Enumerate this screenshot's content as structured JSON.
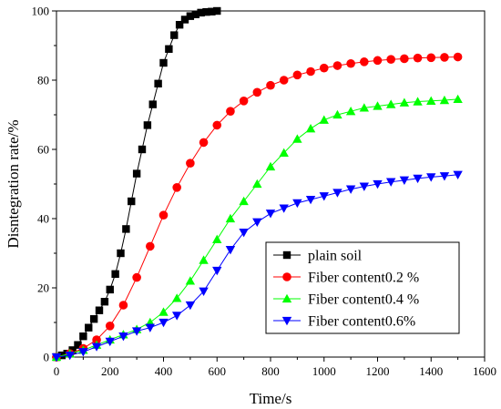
{
  "chart_data": {
    "type": "line",
    "xlabel": "Time/s",
    "ylabel": "Disntegration rate/%",
    "xlim": [
      0,
      1600
    ],
    "ylim": [
      0,
      100
    ],
    "xticks": [
      0,
      200,
      400,
      600,
      800,
      1000,
      1200,
      1400,
      1600
    ],
    "yticks": [
      0,
      20,
      40,
      60,
      80,
      100
    ],
    "grid": false,
    "legend_position": "bottom-right",
    "series": [
      {
        "name": "plain soil",
        "color": "#000000",
        "marker": "square",
        "x": [
          0,
          20,
          40,
          60,
          80,
          100,
          120,
          140,
          160,
          180,
          200,
          220,
          240,
          260,
          280,
          300,
          320,
          340,
          360,
          380,
          400,
          420,
          440,
          460,
          480,
          500,
          520,
          540,
          560,
          580,
          600
        ],
        "y": [
          0,
          0.5,
          1,
          2,
          3.5,
          6,
          8.5,
          11,
          13.5,
          16,
          19.5,
          24,
          30,
          37,
          45,
          53,
          60,
          67,
          73,
          79,
          85,
          89,
          93,
          96,
          97.5,
          98.5,
          99,
          99.5,
          99.7,
          99.8,
          100
        ]
      },
      {
        "name": "Fiber content0.2 %",
        "color": "#ff0000",
        "marker": "circle",
        "x": [
          0,
          50,
          100,
          150,
          200,
          250,
          300,
          350,
          400,
          450,
          500,
          550,
          600,
          650,
          700,
          750,
          800,
          850,
          900,
          950,
          1000,
          1050,
          1100,
          1150,
          1200,
          1250,
          1300,
          1350,
          1400,
          1450,
          1500
        ],
        "y": [
          0,
          1,
          2.5,
          5,
          9,
          15,
          23,
          32,
          41,
          49,
          56,
          62,
          67,
          71,
          74,
          76.5,
          78.5,
          80,
          81.5,
          82.5,
          83.5,
          84.2,
          84.8,
          85.3,
          85.7,
          86,
          86.2,
          86.4,
          86.5,
          86.6,
          86.7
        ]
      },
      {
        "name": "Fiber content0.4 %",
        "color": "#00ff00",
        "marker": "triangle-up",
        "x": [
          0,
          50,
          100,
          150,
          200,
          250,
          300,
          350,
          400,
          450,
          500,
          550,
          600,
          650,
          700,
          750,
          800,
          850,
          900,
          950,
          1000,
          1050,
          1100,
          1150,
          1200,
          1250,
          1300,
          1350,
          1400,
          1450,
          1500
        ],
        "y": [
          0,
          1,
          2,
          3.5,
          5,
          6.5,
          8,
          10,
          13,
          17,
          22,
          28,
          34,
          40,
          45,
          50,
          55,
          59,
          63,
          66,
          68.5,
          70,
          71,
          72,
          72.5,
          73,
          73.5,
          73.8,
          74,
          74.2,
          74.5
        ]
      },
      {
        "name": "Fiber content0.6%",
        "color": "#0000ff",
        "marker": "triangle-down",
        "x": [
          0,
          50,
          100,
          150,
          200,
          250,
          300,
          350,
          400,
          450,
          500,
          550,
          600,
          650,
          700,
          750,
          800,
          850,
          900,
          950,
          1000,
          1050,
          1100,
          1150,
          1200,
          1250,
          1300,
          1350,
          1400,
          1450,
          1500
        ],
        "y": [
          0,
          0.5,
          1.5,
          3,
          4.5,
          6,
          7.5,
          8.5,
          10,
          12,
          15,
          19,
          25,
          31,
          36,
          39,
          41.5,
          43,
          44.5,
          45.5,
          46.5,
          47.5,
          48.5,
          49.3,
          50,
          50.6,
          51.1,
          51.6,
          52,
          52.3,
          52.7
        ]
      }
    ]
  }
}
